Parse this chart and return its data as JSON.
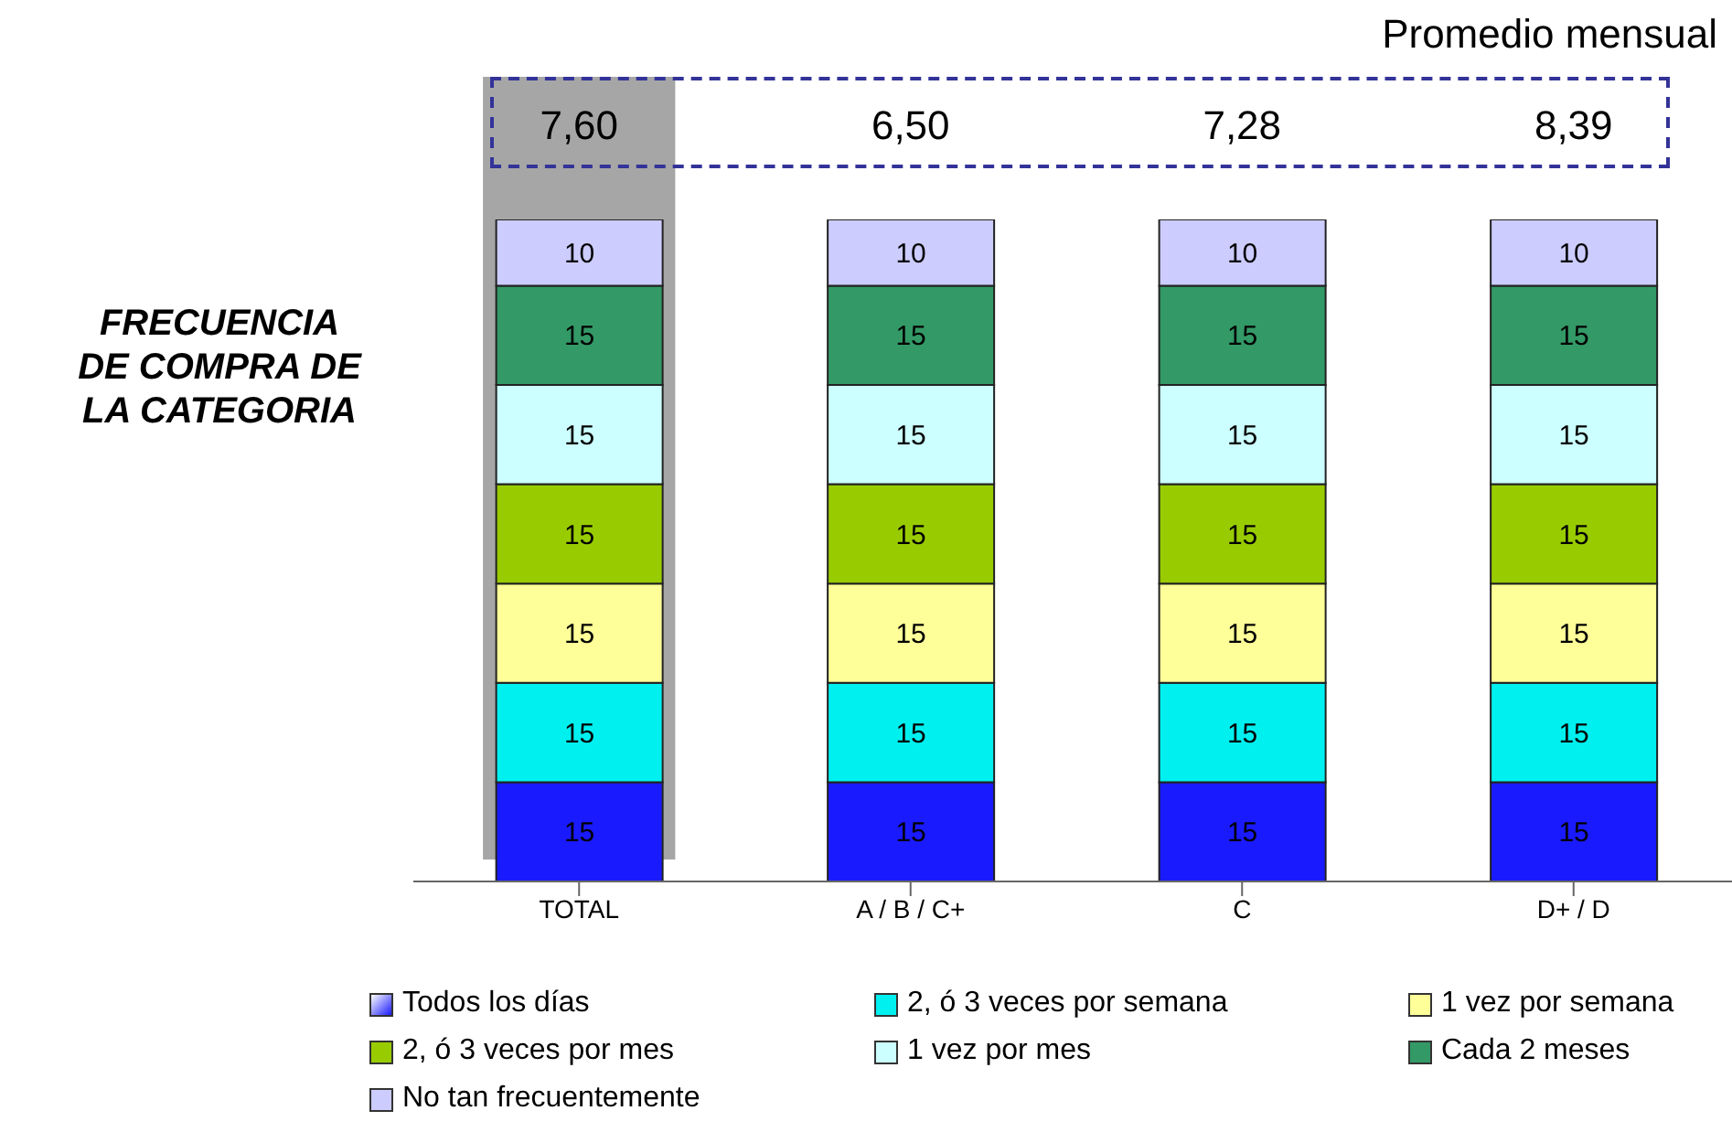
{
  "chart_data": {
    "type": "bar",
    "stacked": true,
    "data_labels": true,
    "ylabel": "FRECUENCIA DE COMPRA DE LA CATEGORIA",
    "categories": [
      "TOTAL",
      "A / B / C+",
      "C",
      "D+ / D"
    ],
    "series": [
      {
        "name": "Todos los días",
        "color": "#1a1aff",
        "values": [
          15,
          15,
          15,
          15
        ]
      },
      {
        "name": "2, ó 3 veces por semana",
        "color": "#00f0f0",
        "values": [
          15,
          15,
          15,
          15
        ]
      },
      {
        "name": "1 vez por semana",
        "color": "#ffff99",
        "values": [
          15,
          15,
          15,
          15
        ]
      },
      {
        "name": "2, ó 3 veces por mes",
        "color": "#99cc00",
        "values": [
          15,
          15,
          15,
          15
        ]
      },
      {
        "name": "1 vez por mes",
        "color": "#ccffff",
        "values": [
          15,
          15,
          15,
          15
        ]
      },
      {
        "name": "Cada 2 meses",
        "color": "#339966",
        "values": [
          15,
          15,
          15,
          15
        ]
      },
      {
        "name": "No tan frecuentemente",
        "color": "#ccccff",
        "values": [
          10,
          10,
          10,
          10
        ]
      }
    ],
    "annotations": [
      "Promedio mensual",
      "7,60",
      "6,50",
      "7,28",
      "8,39"
    ],
    "bands": [
      {
        "axis": "x",
        "from": "TOTAL",
        "to": "TOTAL",
        "color": "#a6a6a6"
      }
    ],
    "legend": "bottom"
  }
}
